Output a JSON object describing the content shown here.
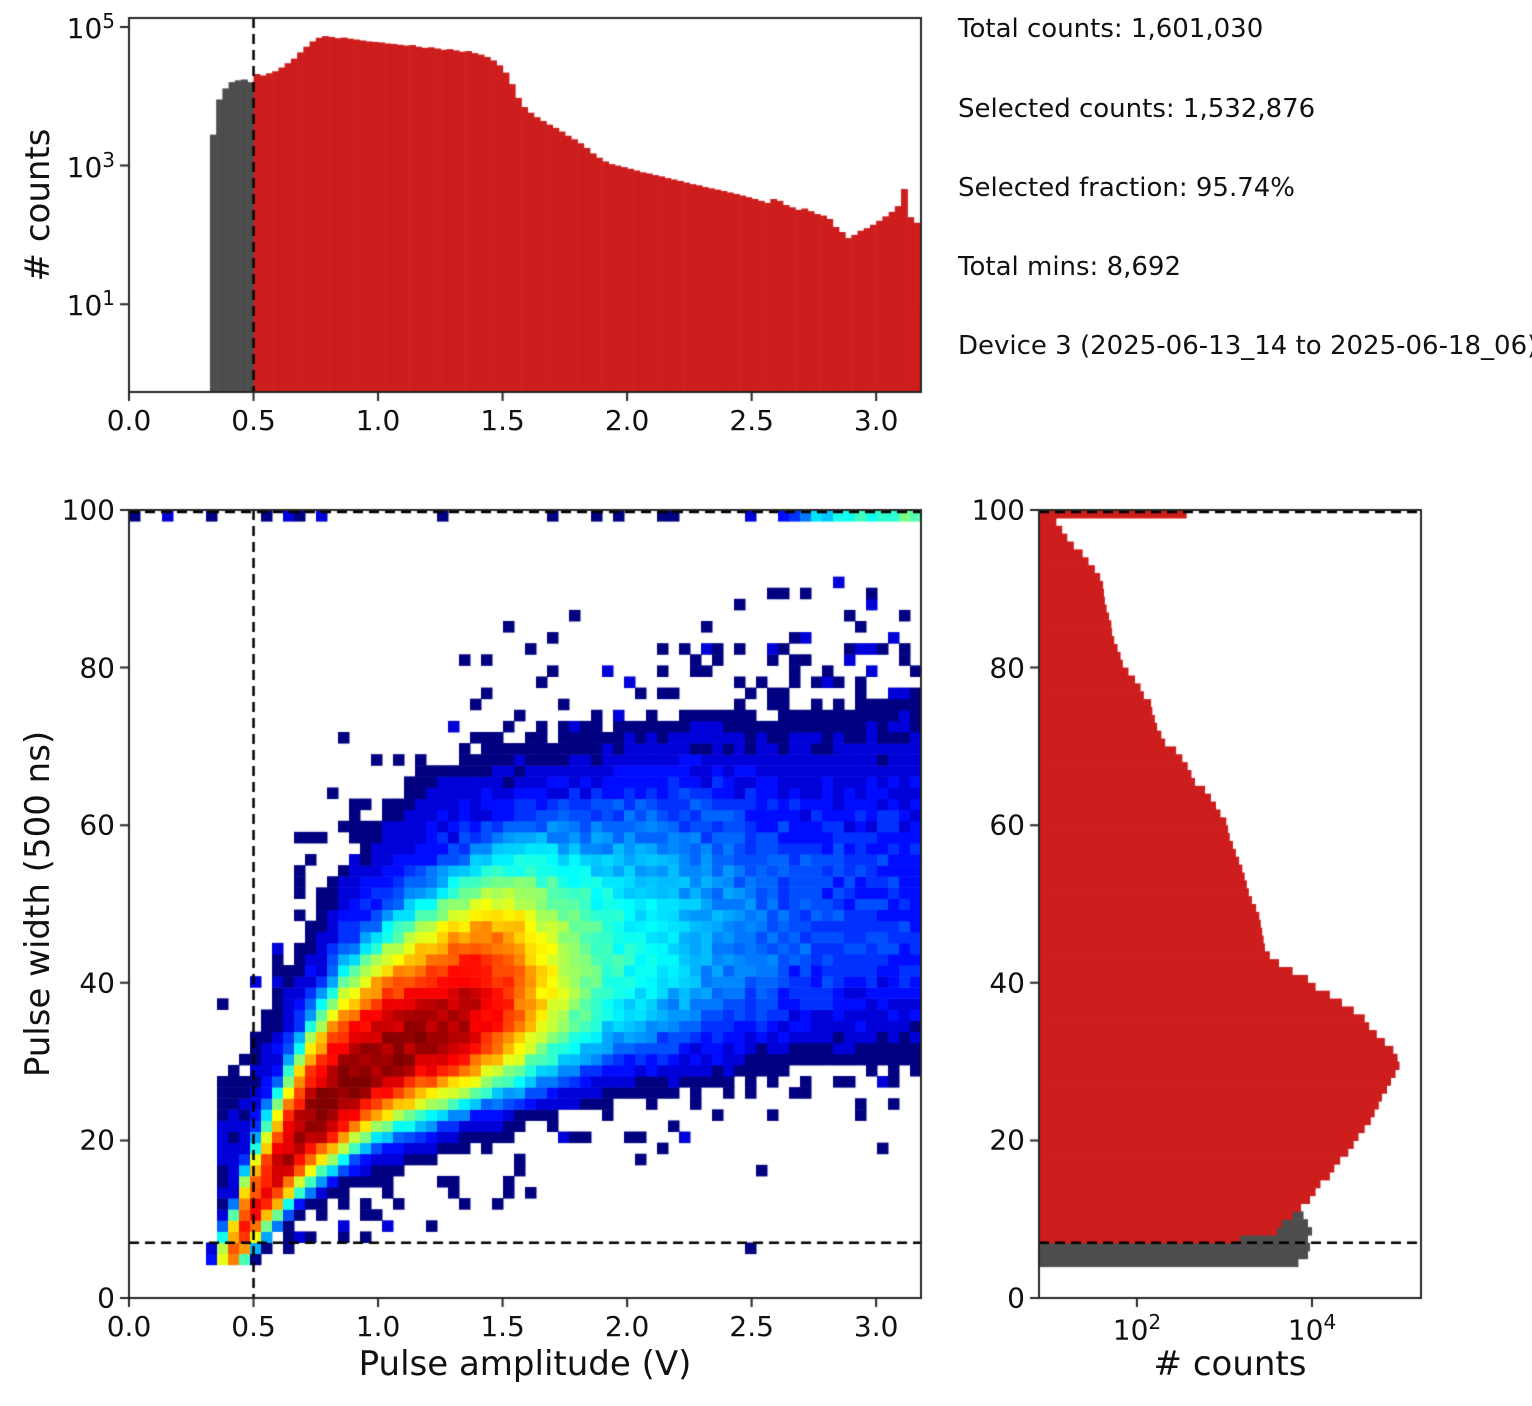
{
  "annotations": {
    "lines": [
      "Total counts: 1,601,030",
      "Selected counts: 1,532,876",
      "Selected fraction: 95.74%",
      "Total mins: 8,692",
      "Device 3 (2025-06-13_14 to 2025-06-18_06)"
    ]
  },
  "labels": {
    "amp_hist_y": "# counts",
    "scatter_y": "Pulse width (500 ns)",
    "scatter_x": "Pulse amplitude (V)",
    "width_hist_x": "# counts"
  },
  "colors": {
    "selected": "#cd1d1d",
    "rejected": "#4d4d4d",
    "line": "#000000",
    "spine": "#262626"
  },
  "chart_data": [
    {
      "id": "amplitude_histogram",
      "type": "bar",
      "orientation": "vertical",
      "y_scale": "log",
      "ylabel": "# counts",
      "x_range": [
        0,
        3.18
      ],
      "y_range": [
        0.54,
        135000
      ],
      "x_ticks": [
        {
          "v": 0.0,
          "label": "0.0"
        },
        {
          "v": 0.5,
          "label": "0.5"
        },
        {
          "v": 1.0,
          "label": "1.0"
        },
        {
          "v": 1.5,
          "label": "1.5"
        },
        {
          "v": 2.0,
          "label": "2.0"
        },
        {
          "v": 2.5,
          "label": "2.5"
        },
        {
          "v": 3.0,
          "label": "3.0"
        }
      ],
      "y_ticks": [
        {
          "v": 100000,
          "base": "10",
          "exp": "5"
        },
        {
          "v": 1000,
          "base": "10",
          "exp": "3"
        },
        {
          "v": 10,
          "base": "10",
          "exp": "1"
        }
      ],
      "bin_width": 0.025,
      "threshold_x": 0.5,
      "gray_bins": {
        "start": 0.325,
        "counts": [
          2800,
          9000,
          13000,
          16000,
          17000,
          17500,
          16000
        ]
      },
      "red_bins": {
        "start": 0.5,
        "counts": [
          21000,
          20000,
          21500,
          23000,
          26000,
          30000,
          35000,
          43000,
          52000,
          62000,
          70000,
          74000,
          72000,
          69000,
          70500,
          68000,
          66000,
          64000,
          62000,
          61000,
          60000,
          58000,
          57000,
          55500,
          54000,
          55000,
          52000,
          50000,
          51000,
          49000,
          47000,
          48000,
          46000,
          44000,
          45000,
          42000,
          40000,
          37000,
          33000,
          28000,
          22000,
          15000,
          9500,
          7000,
          5800,
          5000,
          4400,
          3900,
          3500,
          3100,
          2700,
          2400,
          2100,
          1800,
          1500,
          1300,
          1150,
          1050,
          1000,
          950,
          900,
          850,
          800,
          770,
          730,
          700,
          660,
          630,
          600,
          570,
          540,
          520,
          490,
          470,
          450,
          430,
          410,
          390,
          370,
          350,
          330,
          310,
          290,
          330,
          310,
          270,
          250,
          230,
          240,
          220,
          200,
          190,
          170,
          130,
          110,
          90,
          100,
          115,
          125,
          140,
          160,
          185,
          215,
          260,
          460,
          180,
          150,
          9
        ]
      }
    },
    {
      "id": "pulse_scatter",
      "type": "heatmap",
      "colormap": "jet",
      "xlabel": "Pulse amplitude (V)",
      "ylabel": "Pulse width (500 ns)",
      "x_range": [
        0,
        3.18
      ],
      "y_range": [
        0,
        100
      ],
      "x_ticks": [
        {
          "v": 0.0,
          "label": "0.0"
        },
        {
          "v": 0.5,
          "label": "0.5"
        },
        {
          "v": 1.0,
          "label": "1.0"
        },
        {
          "v": 1.5,
          "label": "1.5"
        },
        {
          "v": 2.0,
          "label": "2.0"
        },
        {
          "v": 2.5,
          "label": "2.5"
        },
        {
          "v": 3.0,
          "label": "3.0"
        }
      ],
      "y_ticks": [
        {
          "v": 0,
          "label": "0"
        },
        {
          "v": 20,
          "label": "20"
        },
        {
          "v": 40,
          "label": "40"
        },
        {
          "v": 60,
          "label": "60"
        },
        {
          "v": 80,
          "label": "80"
        },
        {
          "v": 100,
          "label": "100"
        }
      ],
      "thresholds": {
        "x": 0.5,
        "y": 7,
        "y_top": 100
      },
      "grid": {
        "nx": 72,
        "ny": 71
      },
      "vmax": 3000,
      "ridge": [
        [
          0.37,
          4.5,
          1.2,
          150
        ],
        [
          0.42,
          6,
          1.5,
          600
        ],
        [
          0.47,
          9,
          2,
          900
        ],
        [
          0.52,
          12,
          2.2,
          1100
        ],
        [
          0.57,
          14.5,
          2.4,
          1400
        ],
        [
          0.62,
          17,
          2.6,
          1800
        ],
        [
          0.67,
          19.5,
          2.8,
          2200
        ],
        [
          0.72,
          21.5,
          3,
          2600
        ],
        [
          0.78,
          23.5,
          3.2,
          3000
        ],
        [
          0.85,
          26,
          3.4,
          3000
        ],
        [
          0.95,
          28.5,
          3.6,
          2800
        ],
        [
          1.05,
          30.5,
          3.8,
          2600
        ],
        [
          1.15,
          32,
          4,
          2400
        ],
        [
          1.25,
          33.5,
          4.2,
          2200
        ],
        [
          1.35,
          35,
          4.4,
          1900
        ],
        [
          1.45,
          36.5,
          4.6,
          1300
        ],
        [
          1.55,
          37.5,
          5,
          600
        ],
        [
          1.65,
          38.5,
          5.5,
          220
        ],
        [
          1.75,
          39.5,
          6,
          90
        ],
        [
          1.85,
          40.5,
          6.5,
          45
        ],
        [
          1.95,
          41.5,
          7,
          28
        ],
        [
          2.1,
          42.5,
          8,
          16
        ],
        [
          2.3,
          43.5,
          9,
          9
        ],
        [
          2.5,
          44.5,
          10,
          6
        ],
        [
          2.7,
          45.5,
          11,
          4.5
        ],
        [
          2.9,
          46,
          12,
          3.5
        ],
        [
          3.1,
          46.5,
          13,
          3
        ]
      ],
      "halo": [
        [
          0.45,
          18,
          8,
          2
        ],
        [
          0.6,
          25,
          10,
          3
        ],
        [
          0.8,
          33,
          11,
          5
        ],
        [
          1.0,
          38,
          12,
          6
        ],
        [
          1.2,
          42,
          13,
          6
        ],
        [
          1.4,
          45,
          13,
          6
        ],
        [
          1.6,
          47,
          13,
          5
        ],
        [
          1.8,
          49,
          13,
          4
        ],
        [
          2.0,
          50,
          14,
          3
        ],
        [
          2.2,
          51,
          14,
          2.5
        ],
        [
          2.4,
          52,
          14,
          2
        ],
        [
          2.6,
          53,
          15,
          0.9
        ],
        [
          2.8,
          54,
          15,
          0.8
        ],
        [
          3.0,
          55,
          15,
          0.8
        ]
      ],
      "top_row": {
        "y_min": 98.6,
        "base": 0.3,
        "x_start": 2.6,
        "slope": 80
      },
      "asym": {
        "up": 1.35,
        "down": 0.78
      },
      "x_cutoff": {
        "start": 0.33,
        "width": 0.05
      },
      "y_floor": 4
    },
    {
      "id": "width_histogram",
      "type": "bar",
      "orientation": "horizontal",
      "x_scale": "log",
      "xlabel": "# counts",
      "x_range": [
        7.6,
        176000
      ],
      "y_range": [
        0,
        100
      ],
      "x_ticks": [
        {
          "v": 100,
          "base": "10",
          "exp": "2"
        },
        {
          "v": 10000,
          "base": "10",
          "exp": "4"
        }
      ],
      "y_ticks": [
        {
          "v": 0,
          "label": "0"
        },
        {
          "v": 20,
          "label": "20"
        },
        {
          "v": 40,
          "label": "40"
        },
        {
          "v": 60,
          "label": "60"
        },
        {
          "v": 80,
          "label": "80"
        },
        {
          "v": 100,
          "label": "100"
        }
      ],
      "bin_height": 1,
      "threshold_y": 7,
      "threshold_y_top": 100,
      "gray_bins": {
        "start": 4,
        "counts": [
          7000,
          9000,
          9500,
          9000,
          10000,
          9000,
          8000,
          6000,
          4000,
          2500,
          1200,
          600
        ]
      },
      "red_bins": {
        "start": 4,
        "counts": [
          0,
          0,
          0,
          1500,
          4000,
          4500,
          6000,
          7500,
          9500,
          11000,
          12500,
          16000,
          18000,
          21000,
          26000,
          30000,
          34000,
          40000,
          47000,
          52000,
          58000,
          63000,
          72000,
          80000,
          90000,
          100000,
          95000,
          85000,
          68000,
          55000,
          45000,
          40000,
          30000,
          22000,
          16000,
          11000,
          9000,
          6000,
          4200,
          3300,
          2900,
          2800,
          2700,
          2600,
          2500,
          2300,
          2060,
          1900,
          1800,
          1700,
          1600,
          1470,
          1350,
          1250,
          1150,
          1100,
          1050,
          900,
          800,
          700,
          600,
          460,
          420,
          380,
          330,
          280,
          210,
          190,
          170,
          160,
          150,
          145,
          120,
          110,
          95,
          80,
          69,
          65,
          60,
          55,
          52,
          51,
          48,
          45,
          43,
          42,
          41,
          38,
          33,
          28,
          24,
          19,
          16,
          14,
          12,
          370
        ]
      }
    }
  ]
}
